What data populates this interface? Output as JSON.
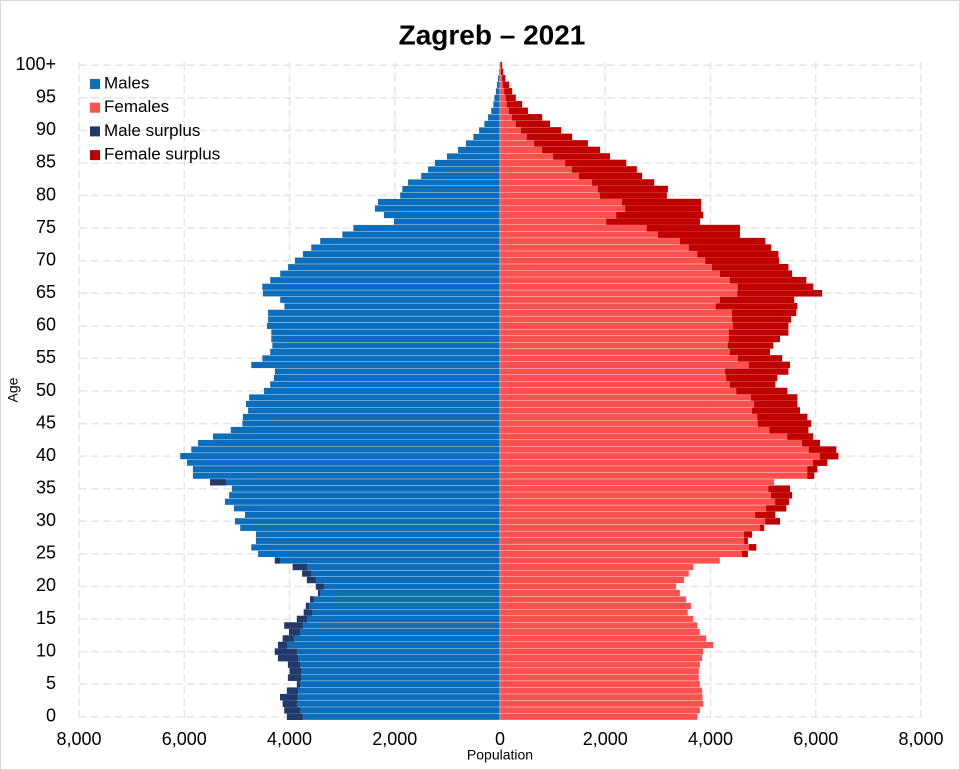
{
  "chart_data": {
    "type": "pyramid",
    "title": "Zagreb – 2021",
    "x_label": "Population",
    "y_label": "Age",
    "categories": [
      "0",
      null,
      null,
      null,
      null,
      "5",
      null,
      null,
      null,
      null,
      "10",
      null,
      null,
      null,
      null,
      "15",
      null,
      null,
      null,
      null,
      "20",
      null,
      null,
      null,
      null,
      "25",
      null,
      null,
      null,
      null,
      "30",
      null,
      null,
      null,
      null,
      "35",
      null,
      null,
      null,
      null,
      "40",
      null,
      null,
      null,
      null,
      "45",
      null,
      null,
      null,
      null,
      "50",
      null,
      null,
      null,
      null,
      "55",
      null,
      null,
      null,
      null,
      "60",
      null,
      null,
      null,
      null,
      "65",
      null,
      null,
      null,
      null,
      "70",
      null,
      null,
      null,
      null,
      "75",
      null,
      null,
      null,
      null,
      "80",
      null,
      null,
      null,
      null,
      "85",
      null,
      null,
      null,
      null,
      "90",
      null,
      null,
      null,
      null,
      "95",
      null,
      null,
      null,
      null,
      "100+"
    ],
    "series": [
      {
        "name": "Males",
        "color": "#0a6ebd",
        "side": "left",
        "values": [
          4050,
          4100,
          4130,
          4180,
          4050,
          3860,
          4030,
          4000,
          4030,
          4220,
          4280,
          4220,
          4130,
          4010,
          4100,
          3860,
          3730,
          3690,
          3610,
          3460,
          3500,
          3670,
          3760,
          3940,
          4280,
          4600,
          4730,
          4640,
          4640,
          4940,
          5040,
          4850,
          5060,
          5230,
          5150,
          5100,
          5510,
          5840,
          5840,
          5950,
          6080,
          5870,
          5740,
          5460,
          5120,
          4900,
          4890,
          4790,
          4830,
          4770,
          4490,
          4370,
          4300,
          4280,
          4730,
          4520,
          4370,
          4330,
          4350,
          4350,
          4430,
          4410,
          4410,
          4100,
          4180,
          4510,
          4520,
          4370,
          4180,
          4030,
          3900,
          3750,
          3590,
          3420,
          3000,
          2790,
          2020,
          2210,
          2380,
          2320,
          1900,
          1860,
          1750,
          1500,
          1370,
          1240,
          1010,
          800,
          650,
          510,
          400,
          300,
          230,
          170,
          130,
          110,
          80,
          60,
          40,
          20,
          15
        ]
      },
      {
        "name": "Females",
        "color": "#ff5050",
        "side": "right",
        "values": [
          3750,
          3800,
          3860,
          3850,
          3840,
          3800,
          3780,
          3780,
          3800,
          3840,
          3860,
          4050,
          3920,
          3800,
          3750,
          3670,
          3570,
          3630,
          3540,
          3420,
          3350,
          3500,
          3590,
          3670,
          4180,
          4710,
          4870,
          4710,
          4790,
          5020,
          5320,
          5230,
          5440,
          5490,
          5550,
          5510,
          5210,
          5970,
          6030,
          6220,
          6430,
          6390,
          6080,
          5950,
          5860,
          5910,
          5840,
          5700,
          5650,
          5650,
          5460,
          5230,
          5270,
          5480,
          5510,
          5360,
          5130,
          5190,
          5320,
          5480,
          5480,
          5530,
          5630,
          5650,
          5590,
          6120,
          5950,
          5820,
          5550,
          5480,
          5300,
          5290,
          5150,
          5040,
          4560,
          4560,
          3800,
          3860,
          3820,
          3820,
          3170,
          3190,
          2930,
          2700,
          2600,
          2400,
          2090,
          1900,
          1670,
          1370,
          1160,
          950,
          800,
          530,
          420,
          300,
          230,
          170,
          100,
          60,
          40
        ]
      }
    ],
    "surplus": [
      {
        "name": "Male surplus",
        "color": "#213a6b"
      },
      {
        "name": "Female surplus",
        "color": "#c00000"
      }
    ],
    "xlim": [
      -8000,
      8000
    ],
    "xticks": [
      {
        "value": -8000,
        "label": "8,000"
      },
      {
        "value": -6000,
        "label": "6,000"
      },
      {
        "value": -4000,
        "label": "4,000"
      },
      {
        "value": -2000,
        "label": "2,000"
      },
      0,
      {
        "value": 2000,
        "label": "2,000"
      },
      {
        "value": 4000,
        "label": "4,000"
      },
      {
        "value": 6000,
        "label": "6,000"
      },
      {
        "value": 8000,
        "label": "8,000"
      }
    ],
    "grid": true,
    "legend": "upper left"
  }
}
